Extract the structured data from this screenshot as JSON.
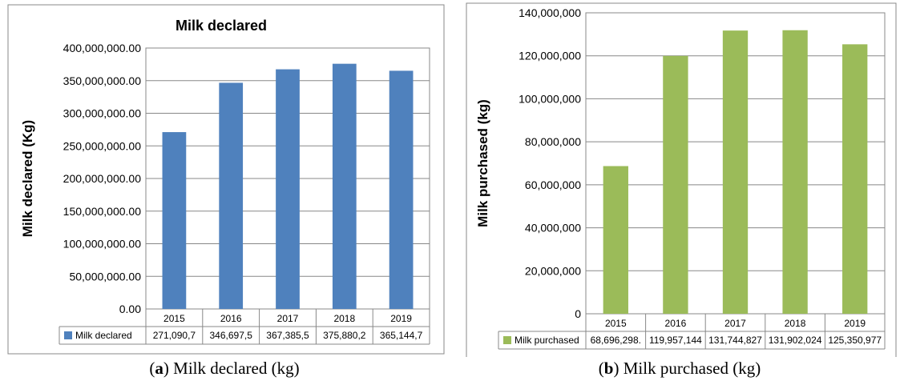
{
  "chart_data": [
    {
      "type": "bar",
      "title": "Milk  declared",
      "ylabel": "Milk declared (Kg)",
      "xlabel": "",
      "categories": [
        "2015",
        "2016",
        "2017",
        "2018",
        "2019"
      ],
      "series": [
        {
          "name": "Milk declared",
          "values": [
            271090700,
            346697500,
            367385500,
            375880200,
            365144700
          ]
        }
      ],
      "table_values": [
        "271,090,7",
        "346,697,5",
        "367,385,5",
        "375,880,2",
        "365,144,7"
      ],
      "ylim": [
        0,
        400000000
      ],
      "yticks": [
        "0.00",
        "50,000,000.00",
        "100,000,000.00",
        "150,000,000.00",
        "200,000,000.00",
        "250,000,000.00",
        "300,000,000.00",
        "350,000,000.00",
        "400,000,000.00"
      ],
      "grid": true,
      "legend": "data-table",
      "color": "#4f81bd"
    },
    {
      "type": "bar",
      "title": "Milk purchased",
      "ylabel": "Milk purchased (kg)",
      "xlabel": "",
      "categories": [
        "2015",
        "2016",
        "2017",
        "2018",
        "2019"
      ],
      "series": [
        {
          "name": "Milk purchased",
          "values": [
            68696298,
            119957144,
            131744827,
            131902024,
            125350977
          ]
        }
      ],
      "table_values": [
        "68,696,298.",
        "119,957,144",
        "131,744,827",
        "131,902,024",
        "125,350,977"
      ],
      "ylim": [
        0,
        140000000
      ],
      "yticks": [
        "0",
        "20,000,000",
        "40,000,000",
        "60,000,000",
        "80,000,000",
        "100,000,000",
        "120,000,000",
        "140,000,000"
      ],
      "grid": true,
      "legend": "data-table",
      "color": "#9bbb59"
    }
  ],
  "captions": {
    "a_label": "a",
    "a_text": " Milk declared (kg)",
    "b_label": "b",
    "b_text": " Milk purchased (kg)"
  }
}
